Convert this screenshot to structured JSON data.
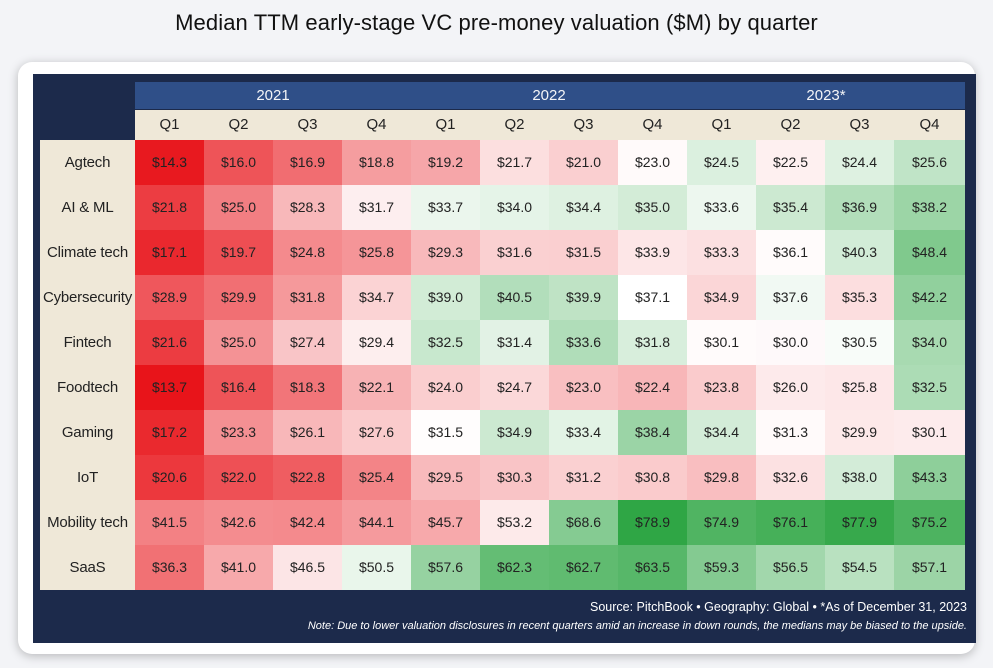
{
  "chart_data": {
    "type": "heatmap",
    "title": "Median TTM early-stage VC pre-money valuation ($M) by quarter",
    "years": [
      "2021",
      "2022",
      "2023*"
    ],
    "quarters": [
      "Q1",
      "Q2",
      "Q3",
      "Q4",
      "Q1",
      "Q2",
      "Q3",
      "Q4",
      "Q1",
      "Q2",
      "Q3",
      "Q4"
    ],
    "rows": [
      "Agtech",
      "AI & ML",
      "Climate tech",
      "Cybersecurity",
      "Fintech",
      "Foodtech",
      "Gaming",
      "IoT",
      "Mobility tech",
      "SaaS"
    ],
    "values": [
      [
        14.3,
        16.0,
        16.9,
        18.8,
        19.2,
        21.7,
        21.0,
        23.0,
        24.5,
        22.5,
        24.4,
        25.6
      ],
      [
        21.8,
        25.0,
        28.3,
        31.7,
        33.7,
        34.0,
        34.4,
        35.0,
        33.6,
        35.4,
        36.9,
        38.2
      ],
      [
        17.1,
        19.7,
        24.8,
        25.8,
        29.3,
        31.6,
        31.5,
        33.9,
        33.3,
        36.1,
        40.3,
        48.4
      ],
      [
        28.9,
        29.9,
        31.8,
        34.7,
        39.0,
        40.5,
        39.9,
        37.1,
        34.9,
        37.6,
        35.3,
        42.2
      ],
      [
        21.6,
        25.0,
        27.4,
        29.4,
        32.5,
        31.4,
        33.6,
        31.8,
        30.1,
        30.0,
        30.5,
        34.0
      ],
      [
        13.7,
        16.4,
        18.3,
        22.1,
        24.0,
        24.7,
        23.0,
        22.4,
        23.8,
        26.0,
        25.8,
        32.5
      ],
      [
        17.2,
        23.3,
        26.1,
        27.6,
        31.5,
        34.9,
        33.4,
        38.4,
        34.4,
        31.3,
        29.9,
        30.1
      ],
      [
        20.6,
        22.0,
        22.8,
        25.4,
        29.5,
        30.3,
        31.2,
        30.8,
        29.8,
        32.6,
        38.0,
        43.3
      ],
      [
        41.5,
        42.6,
        42.4,
        44.1,
        45.7,
        53.2,
        68.6,
        78.9,
        74.9,
        76.1,
        77.9,
        75.2
      ],
      [
        36.3,
        41.0,
        46.5,
        50.5,
        57.6,
        62.3,
        62.7,
        63.5,
        59.3,
        56.5,
        54.5,
        57.1
      ]
    ],
    "labels": [
      [
        "$14.3",
        "$16.0",
        "$16.9",
        "$18.8",
        "$19.2",
        "$21.7",
        "$21.0",
        "$23.0",
        "$24.5",
        "$22.5",
        "$24.4",
        "$25.6"
      ],
      [
        "$21.8",
        "$25.0",
        "$28.3",
        "$31.7",
        "$33.7",
        "$34.0",
        "$34.4",
        "$35.0",
        "$33.6",
        "$35.4",
        "$36.9",
        "$38.2"
      ],
      [
        "$17.1",
        "$19.7",
        "$24.8",
        "$25.8",
        "$29.3",
        "$31.6",
        "$31.5",
        "$33.9",
        "$33.3",
        "$36.1",
        "$40.3",
        "$48.4"
      ],
      [
        "$28.9",
        "$29.9",
        "$31.8",
        "$34.7",
        "$39.0",
        "$40.5",
        "$39.9",
        "$37.1",
        "$34.9",
        "$37.6",
        "$35.3",
        "$42.2"
      ],
      [
        "$21.6",
        "$25.0",
        "$27.4",
        "$29.4",
        "$32.5",
        "$31.4",
        "$33.6",
        "$31.8",
        "$30.1",
        "$30.0",
        "$30.5",
        "$34.0"
      ],
      [
        "$13.7",
        "$16.4",
        "$18.3",
        "$22.1",
        "$24.0",
        "$24.7",
        "$23.0",
        "$22.4",
        "$23.8",
        "$26.0",
        "$25.8",
        "$32.5"
      ],
      [
        "$17.2",
        "$23.3",
        "$26.1",
        "$27.6",
        "$31.5",
        "$34.9",
        "$33.4",
        "$38.4",
        "$34.4",
        "$31.3",
        "$29.9",
        "$30.1"
      ],
      [
        "$20.6",
        "$22.0",
        "$22.8",
        "$25.4",
        "$29.5",
        "$30.3",
        "$31.2",
        "$30.8",
        "$29.8",
        "$32.6",
        "$38.0",
        "$43.3"
      ],
      [
        "$41.5",
        "$42.6",
        "$42.4",
        "$44.1",
        "$45.7",
        "$53.2",
        "$68.6",
        "$78.9",
        "$74.9",
        "$76.1",
        "$77.9",
        "$75.2"
      ],
      [
        "$36.3",
        "$41.0",
        "$46.5",
        "$50.5",
        "$57.6",
        "$62.3",
        "$62.7",
        "$63.5",
        "$59.3",
        "$56.5",
        "$54.5",
        "$57.1"
      ]
    ],
    "colors": {
      "low": "#e8141a",
      "mid": "#ffffff",
      "high": "#2fa645"
    },
    "source": "Source: PitchBook • Geography: Global • *As of December 31, 2023",
    "note": "Note: Due to lower valuation disclosures in recent quarters amid an increase in down rounds, the medians may be biased to the upside."
  }
}
